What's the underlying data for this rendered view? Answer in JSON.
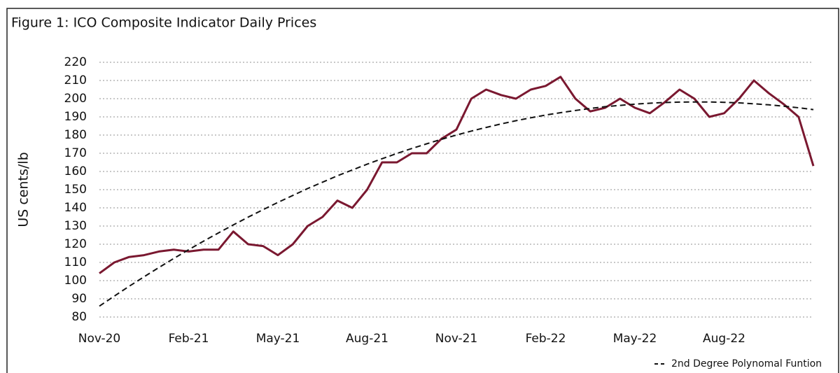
{
  "chart_data": {
    "type": "line",
    "title": "Figure 1: ICO Composite Indicator Daily Prices",
    "y_label": "US cents/lb",
    "categories": [
      "Nov-20",
      null,
      null,
      null,
      null,
      null,
      "Feb-21",
      null,
      null,
      null,
      null,
      null,
      "May-21",
      null,
      null,
      null,
      null,
      null,
      "Aug-21",
      null,
      null,
      null,
      null,
      null,
      "Nov-21",
      null,
      null,
      null,
      null,
      null,
      "Feb-22",
      null,
      null,
      null,
      null,
      null,
      "May-22",
      null,
      null,
      null,
      null,
      null,
      "Aug-22",
      null,
      null,
      null,
      null,
      null,
      null
    ],
    "series": [
      {
        "name": "ICO Composite Indicator",
        "color": "#7a1830",
        "dash": false,
        "values": [
          104,
          110,
          113,
          114,
          116,
          117,
          116,
          117,
          117,
          127,
          120,
          119,
          114,
          120,
          130,
          135,
          144,
          140,
          150,
          165,
          165,
          170,
          170,
          178,
          183,
          200,
          205,
          202,
          200,
          205,
          207,
          212,
          200,
          193,
          195,
          200,
          195,
          192,
          198,
          205,
          200,
          190,
          192,
          200,
          210,
          203,
          197,
          190,
          163
        ]
      },
      {
        "name": "2nd Degree Polynomal Funtion",
        "color": "#111111",
        "dash": true,
        "values": [
          86,
          91.5,
          96.9,
          102.1,
          107.2,
          112.2,
          117,
          121.7,
          126.2,
          130.6,
          134.9,
          139,
          143,
          146.8,
          150.6,
          154.1,
          157.6,
          160.8,
          164,
          167,
          169.9,
          172.6,
          175.2,
          177.7,
          180,
          182.2,
          184.2,
          186.1,
          187.9,
          189.5,
          191,
          192.3,
          193.5,
          194.6,
          195.6,
          196.3,
          197,
          197.5,
          197.9,
          198.1,
          198.2,
          198.2,
          198,
          197.7,
          197.2,
          196.6,
          195.9,
          195,
          194
        ]
      }
    ],
    "ylim": [
      80,
      220
    ],
    "yticks": [
      80,
      90,
      100,
      110,
      120,
      130,
      140,
      150,
      160,
      170,
      180,
      190,
      200,
      210,
      220
    ],
    "grid": true,
    "legend": "bottom-right"
  }
}
